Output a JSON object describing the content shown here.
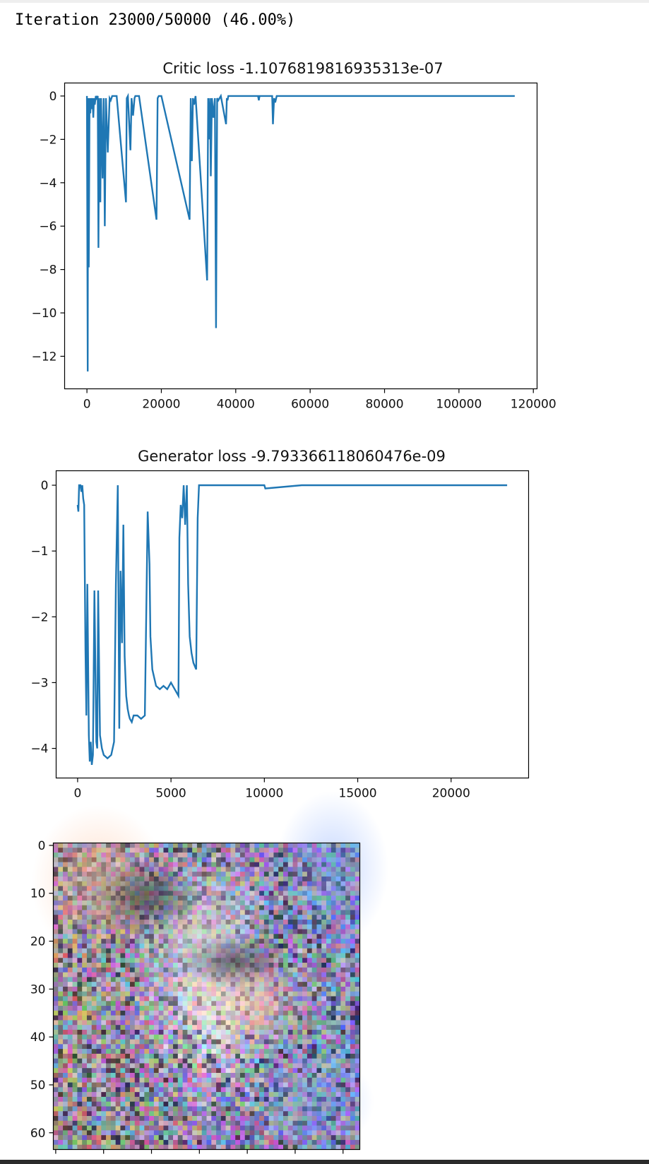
{
  "output": {
    "iteration_text": "Iteration 23000/50000 (46.00%)"
  },
  "colors": {
    "line": "#1f77b4",
    "axes": "#000000",
    "bottom_bar": "#2b2b2b"
  },
  "chart_data": [
    {
      "type": "line",
      "title": "Critic loss -1.1076819816935313e-07",
      "xlim": [
        -6000,
        121000
      ],
      "ylim": [
        -13.5,
        0.6
      ],
      "xticks": [
        0,
        20000,
        40000,
        60000,
        80000,
        100000,
        120000
      ],
      "yticks": [
        0,
        -2,
        -4,
        -6,
        -8,
        -10,
        -12
      ],
      "series": [
        {
          "x": [
            0,
            200,
            300,
            500,
            700,
            900,
            1100,
            1300,
            1500,
            1700,
            1900,
            2100,
            2400,
            2600,
            2900,
            3100,
            3300,
            3600,
            3800,
            4200,
            4500,
            4800,
            5100,
            5600,
            6100,
            6400,
            6800,
            8000,
            10500,
            10700,
            11000,
            11700,
            12000,
            12400,
            12800,
            13000,
            14000,
            18700,
            19000,
            19300,
            20000,
            27600,
            27900,
            28200,
            28500,
            28800,
            29200,
            32300,
            32600,
            32900,
            33100,
            33300,
            33600,
            34000,
            34400,
            34700,
            35000,
            35300,
            36000,
            37400,
            37600,
            37800,
            38000,
            46000,
            46200,
            46400,
            49800,
            50000,
            50300,
            50600,
            51000,
            60000,
            80000,
            100000,
            115000
          ],
          "y": [
            0,
            -12.7,
            -0.1,
            -7.9,
            -0.1,
            -0.8,
            -0.1,
            -0.6,
            -0.1,
            -1.0,
            -0.1,
            -0.4,
            0,
            -0.1,
            0,
            -7.0,
            -0.1,
            -4.9,
            -0.1,
            -3.8,
            -0.1,
            -6.0,
            -0.1,
            -2.6,
            -0.1,
            -0.2,
            0,
            0,
            -4.9,
            -0.1,
            0,
            -2.5,
            -0.1,
            -0.9,
            -0.1,
            0,
            0,
            -5.7,
            -0.1,
            0,
            0,
            -5.7,
            -0.1,
            -3.0,
            -0.1,
            -0.4,
            0,
            -8.5,
            -0.1,
            -2.0,
            -0.1,
            -3.7,
            -0.1,
            -1.0,
            -0.1,
            -10.7,
            -0.1,
            -0.2,
            0,
            -1.3,
            -0.1,
            -0.2,
            0,
            0,
            -0.2,
            0,
            0,
            -1.3,
            -0.1,
            -0.3,
            0,
            0,
            0,
            0,
            0
          ]
        }
      ]
    },
    {
      "type": "line",
      "title": "Generator loss -9.793366118060476e-09",
      "xlim": [
        -1150,
        24150
      ],
      "ylim": [
        -4.45,
        0.22
      ],
      "xticks": [
        0,
        5000,
        10000,
        15000,
        20000
      ],
      "yticks": [
        0,
        -1,
        -2,
        -3,
        -4
      ],
      "series": [
        {
          "x": [
            0,
            40,
            80,
            150,
            200,
            250,
            300,
            350,
            420,
            470,
            520,
            600,
            650,
            700,
            760,
            820,
            900,
            1000,
            1050,
            1100,
            1200,
            1300,
            1400,
            1600,
            1800,
            1950,
            2050,
            2150,
            2230,
            2300,
            2380,
            2450,
            2520,
            2600,
            2680,
            2750,
            2800,
            2900,
            3000,
            3200,
            3400,
            3600,
            3750,
            3850,
            3900,
            4000,
            4200,
            4400,
            4600,
            4800,
            5000,
            5200,
            5400,
            5450,
            5520,
            5600,
            5680,
            5760,
            5850,
            5920,
            6000,
            6100,
            6200,
            6350,
            6430,
            6500,
            6600,
            7000,
            8000,
            10000,
            10050,
            12000,
            23000
          ],
          "y": [
            -0.3,
            -0.4,
            0,
            0,
            -0.1,
            0,
            -0.2,
            -0.3,
            -2.5,
            -3.5,
            -1.5,
            -3.8,
            -4.2,
            -3.9,
            -4.25,
            -4.1,
            -1.6,
            -3.9,
            -4.0,
            -1.6,
            -3.8,
            -4.0,
            -4.1,
            -4.15,
            -4.1,
            -3.9,
            -1.5,
            0,
            -3.7,
            -1.3,
            -2.4,
            -0.6,
            -2.6,
            -3.2,
            -3.4,
            -3.5,
            -3.55,
            -3.6,
            -3.5,
            -3.5,
            -3.55,
            -3.5,
            -0.4,
            -1.2,
            -2.3,
            -2.8,
            -3.05,
            -3.1,
            -3.05,
            -3.1,
            -3.0,
            -3.1,
            -3.2,
            -0.8,
            -0.3,
            -0.5,
            0,
            -0.6,
            0,
            -1.5,
            -2.3,
            -2.55,
            -2.7,
            -2.8,
            -0.5,
            0,
            0,
            0,
            0,
            0,
            -0.05,
            0,
            0
          ]
        }
      ]
    },
    {
      "type": "heatmap",
      "title": "",
      "grid_size": [
        64,
        64
      ],
      "yticks": [
        0,
        10,
        20,
        30,
        40,
        50,
        60
      ],
      "description": "noisy RGB image of a blurry face"
    }
  ]
}
